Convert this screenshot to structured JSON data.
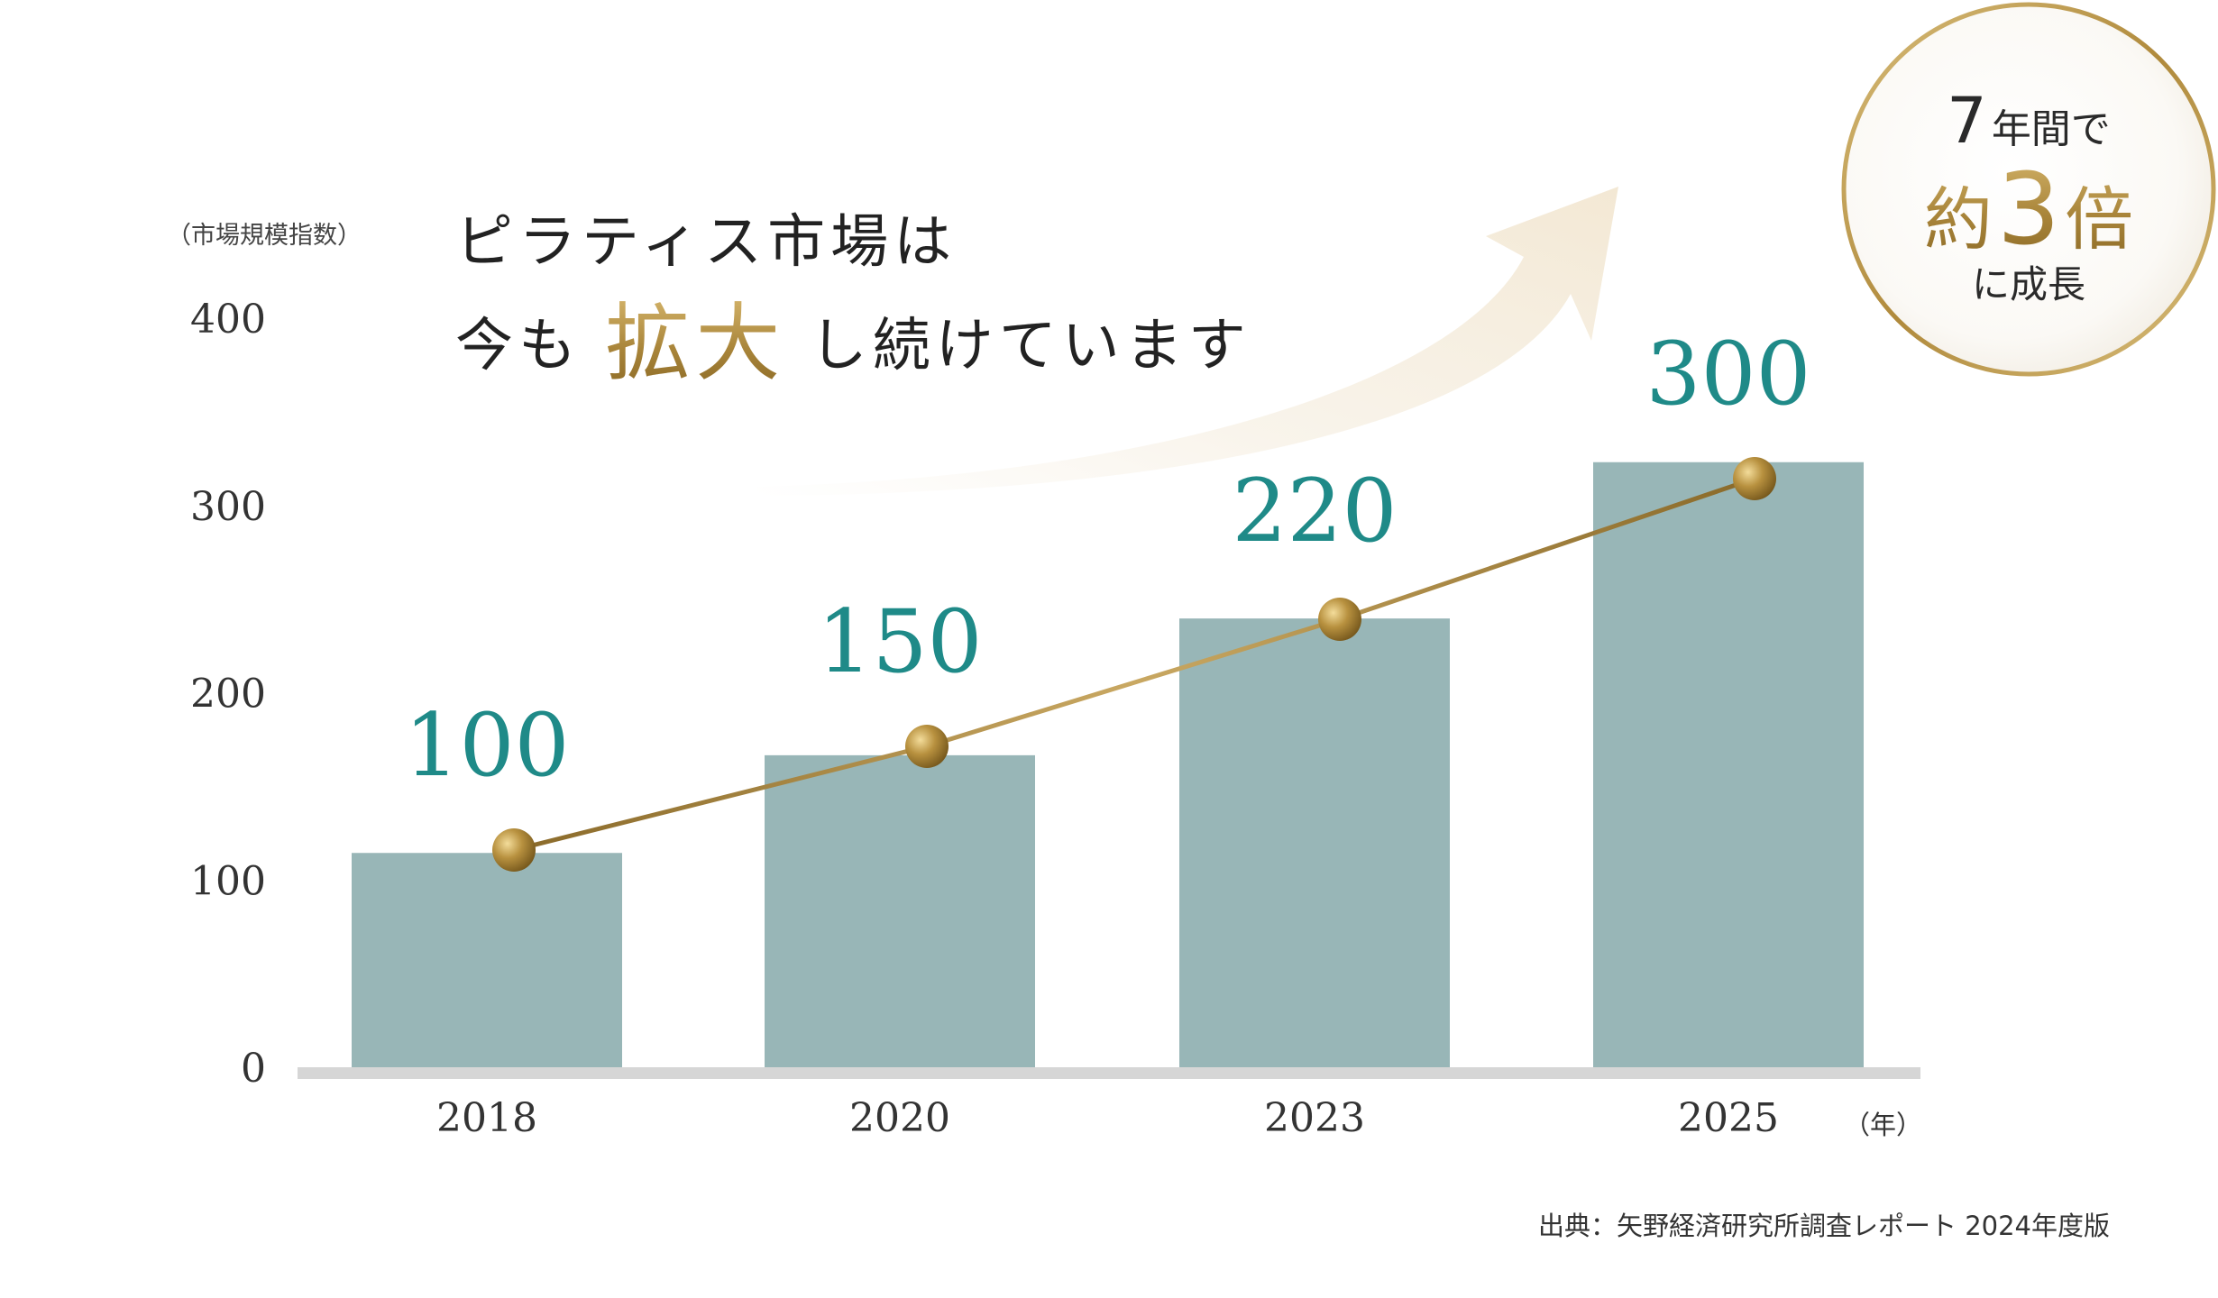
{
  "headline": {
    "line1": "ピラティス市場は",
    "line2_before": "今も",
    "line2_emphasis": "拡大",
    "line2_after": "し続けています"
  },
  "badge": {
    "line1_number": "7",
    "line1_text": "年間で",
    "line2_prefix": "約",
    "line2_number": "3",
    "line2_suffix": "倍",
    "line3": "に成長"
  },
  "source": "出典：矢野経済研究所調査レポート 2024年度版",
  "colors": {
    "bar": "#98b6b7",
    "value_label": "#1f8a88",
    "gold": "#b08a3c",
    "axis_line": "#d6d6d6",
    "text": "#3b3b3b"
  },
  "chart_data": {
    "type": "bar",
    "ylabel": "（市場規模指数）",
    "xlabel": "（年）",
    "ylim": [
      0,
      400
    ],
    "yticks": [
      "0",
      "100",
      "200",
      "300",
      "400"
    ],
    "categories": [
      "2018",
      "2020",
      "2023",
      "2025"
    ],
    "values": [
      100,
      150,
      220,
      300
    ],
    "value_labels": [
      "100",
      "150",
      "220",
      "300"
    ],
    "overlay": "gold line with markers connecting bar tops",
    "grid": false
  }
}
